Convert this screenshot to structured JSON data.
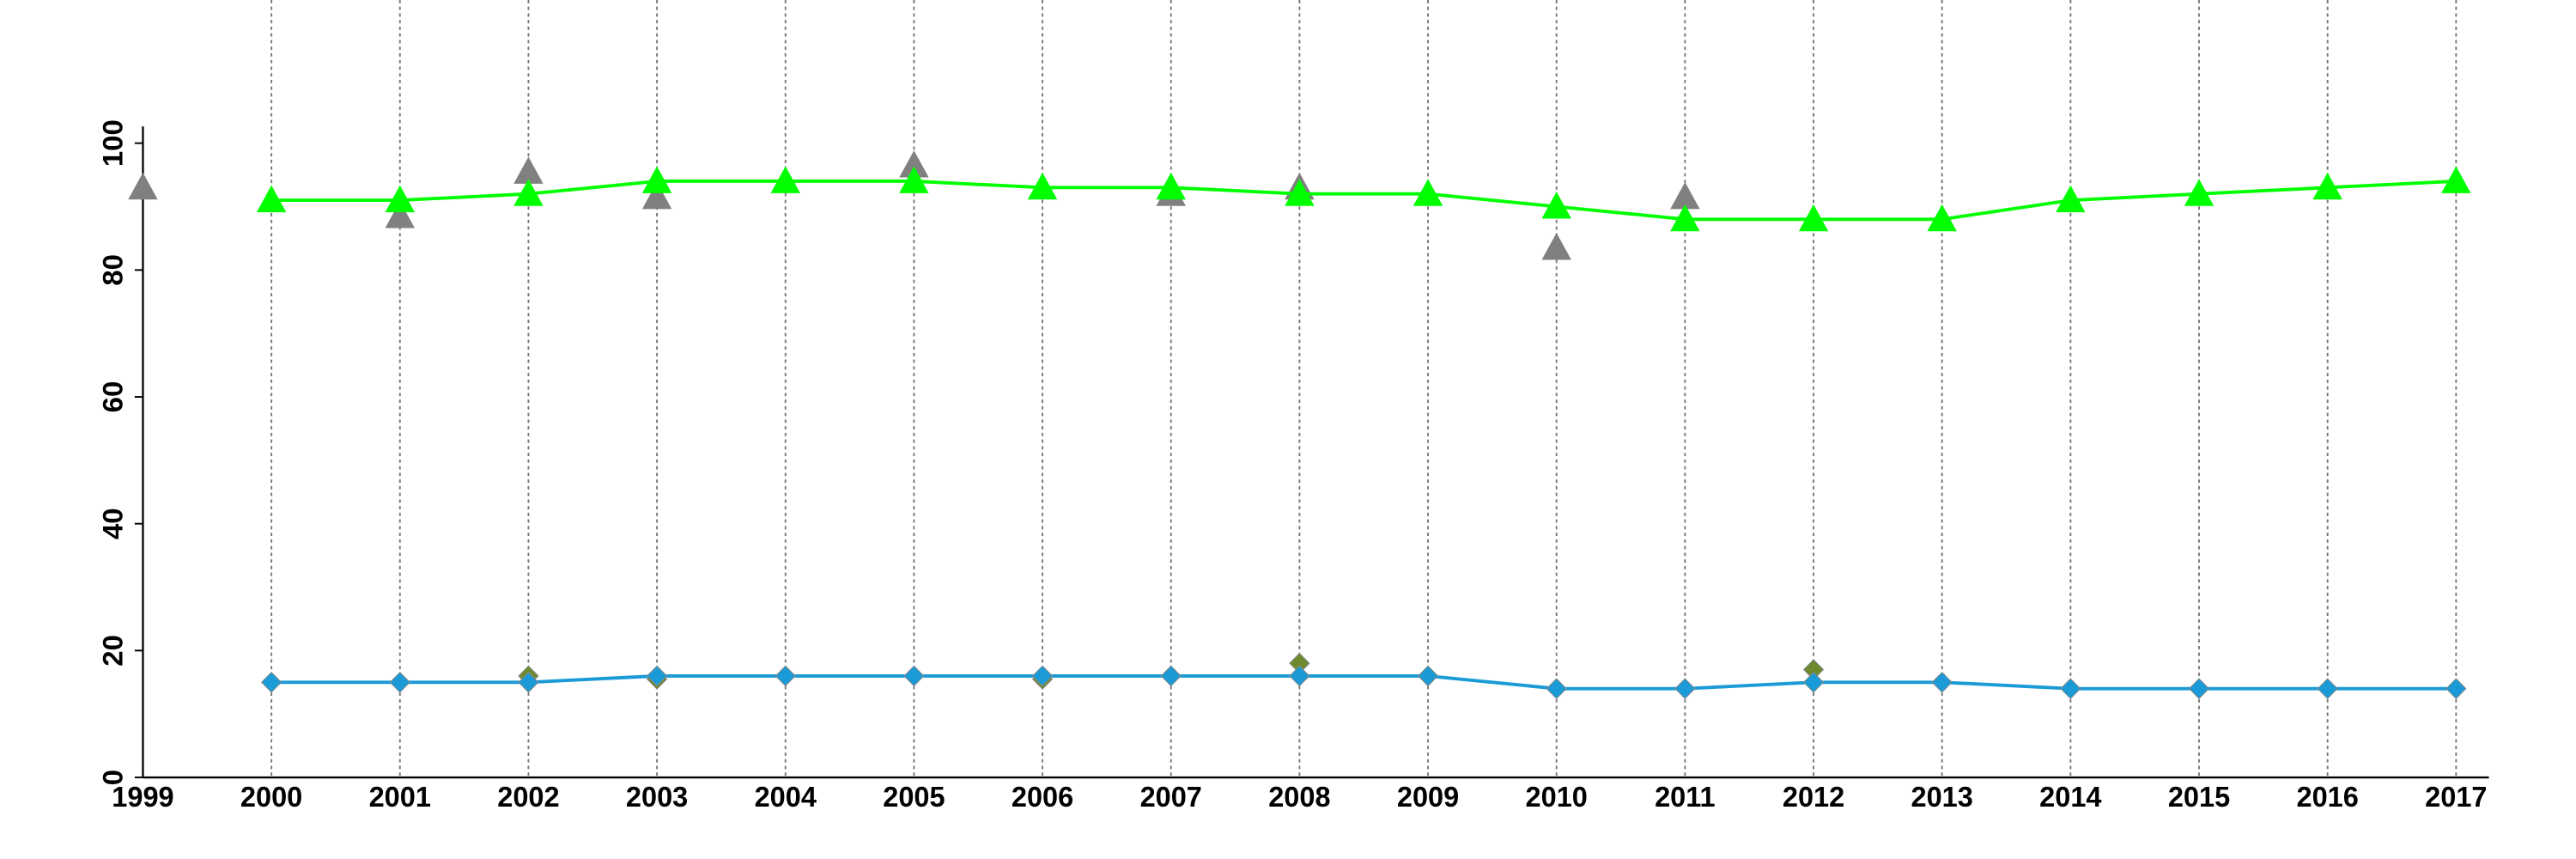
{
  "chart_data": {
    "type": "line",
    "xlim": [
      1999,
      2017
    ],
    "xticks": [
      1999,
      2000,
      2001,
      2002,
      2003,
      2004,
      2005,
      2006,
      2007,
      2008,
      2009,
      2010,
      2011,
      2012,
      2013,
      2014,
      2015,
      2016,
      2017
    ],
    "ylim": [
      0,
      100
    ],
    "yticks": [
      0,
      20,
      40,
      60,
      80,
      100
    ],
    "grid": "x",
    "series": [
      {
        "color": "#808080",
        "marker": "triangle",
        "line": false,
        "x": [
          1999,
          2001,
          2002,
          2003,
          2005,
          2007,
          2008,
          2010,
          2011
        ],
        "values": [
          93,
          88.5,
          95.5,
          91.5,
          96.5,
          92,
          93,
          83.5,
          91.5
        ]
      },
      {
        "color": "#00ff00",
        "marker": "triangle",
        "line": true,
        "x": [
          2000,
          2001,
          2002,
          2003,
          2004,
          2005,
          2006,
          2007,
          2008,
          2009,
          2010,
          2011,
          2012,
          2013,
          2014,
          2015,
          2016,
          2017
        ],
        "values": [
          91,
          91,
          92,
          94,
          94,
          94,
          93,
          93,
          92,
          92,
          90,
          88,
          88,
          88,
          91,
          92,
          93,
          94
        ]
      },
      {
        "color": "#6f8a2e",
        "marker": "diamond",
        "line": false,
        "x": [
          2002,
          2003,
          2006,
          2008,
          2012
        ],
        "values": [
          16,
          15.5,
          15.5,
          18,
          17
        ]
      },
      {
        "color": "#1a9ad6",
        "marker": "diamond",
        "line": true,
        "x": [
          2000,
          2001,
          2002,
          2003,
          2004,
          2005,
          2006,
          2007,
          2008,
          2009,
          2010,
          2011,
          2012,
          2013,
          2014,
          2015,
          2016,
          2017
        ],
        "values": [
          15,
          15,
          15,
          16,
          16,
          16,
          16,
          16,
          16,
          16,
          14,
          14,
          15,
          15,
          14,
          14,
          14,
          14
        ]
      }
    ]
  }
}
